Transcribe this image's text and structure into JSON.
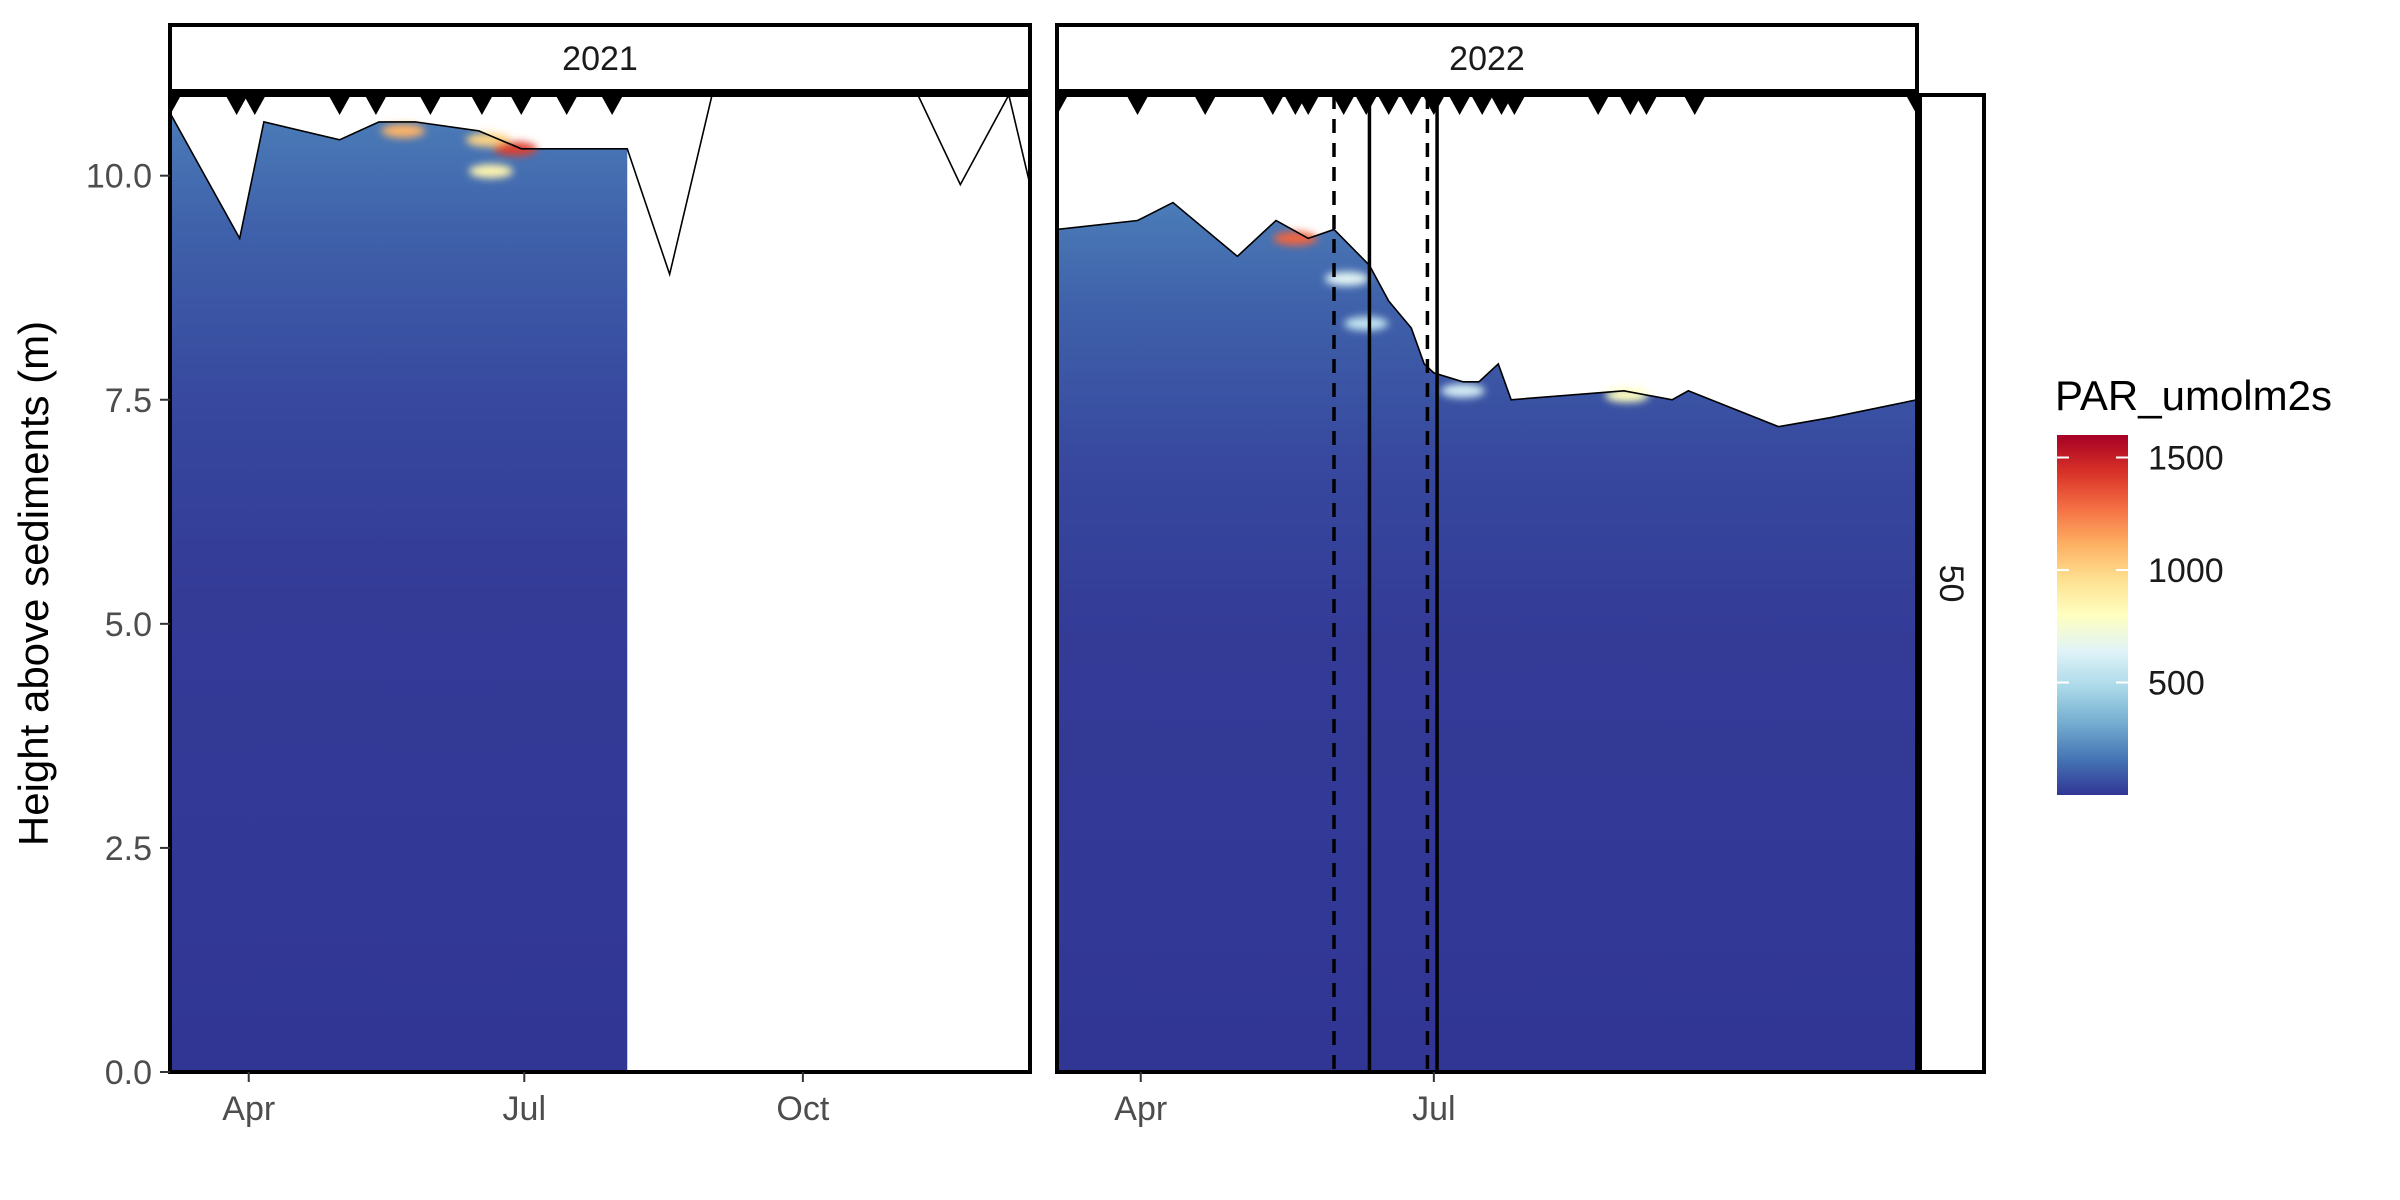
{
  "chart_data": {
    "type": "heatmap",
    "title": "",
    "xlabel": "",
    "ylabel": "Height above sediments (m)",
    "ylim": [
      0,
      10.9
    ],
    "y_ticks": [
      0.0,
      2.5,
      5.0,
      7.5,
      10.0
    ],
    "y_tick_labels": [
      "0.0",
      "2.5",
      "5.0",
      "7.5",
      "10.0"
    ],
    "fill_variable": "PAR_umolm2s",
    "legend": {
      "title": "PAR_umolm2s",
      "placement": "right",
      "range": [
        0,
        1600
      ],
      "breaks": [
        500,
        1000,
        1500
      ],
      "break_labels": [
        "500",
        "1000",
        "1500"
      ],
      "colors": [
        "#313695",
        "#4575b4",
        "#74add1",
        "#abd9e9",
        "#e0f3f8",
        "#ffffbf",
        "#fee090",
        "#fdae61",
        "#f46d43",
        "#d73027",
        "#a50026"
      ]
    },
    "row_strip_label": "50",
    "grid": false,
    "panels": [
      {
        "label": "2021",
        "xlim": [
          "2021-03-06",
          "2021-12-15"
        ],
        "x_ticks": [
          "2021-04-01",
          "2021-07-01",
          "2021-10-01"
        ],
        "x_tick_labels": [
          "Apr",
          "Jul",
          "Oct"
        ],
        "data_extent": [
          "2021-03-06",
          "2021-08-04"
        ],
        "surface_line": {
          "dates": [
            "2021-03-06",
            "2021-03-29",
            "2021-04-06",
            "2021-05-01",
            "2021-05-14",
            "2021-05-26",
            "2021-06-16",
            "2021-06-30",
            "2021-08-04",
            "2021-08-18",
            "2021-09-01",
            "2021-11-08",
            "2021-11-22",
            "2021-12-08",
            "2021-12-15"
          ],
          "heights": [
            10.7,
            9.3,
            10.6,
            10.4,
            10.6,
            10.6,
            10.5,
            10.3,
            10.3,
            8.9,
            10.9,
            10.9,
            9.9,
            10.9,
            9.9
          ]
        },
        "sampling_dates": [
          "2021-03-06",
          "2021-03-28",
          "2021-04-03",
          "2021-05-01",
          "2021-05-13",
          "2021-05-31",
          "2021-06-17",
          "2021-06-30",
          "2021-07-15",
          "2021-07-30"
        ],
        "hotspots": [
          {
            "date": "2021-05-22",
            "height": 10.5,
            "value": 1100
          },
          {
            "date": "2021-06-19",
            "height": 10.4,
            "value": 1000
          },
          {
            "date": "2021-06-28",
            "height": 10.3,
            "value": 1400
          },
          {
            "date": "2021-06-20",
            "height": 10.05,
            "value": 850
          }
        ],
        "vertical_lines": []
      },
      {
        "label": "2022",
        "xlim": [
          "2022-03-06",
          "2022-11-28"
        ],
        "x_ticks": [
          "2022-04-01",
          "2022-07-01"
        ],
        "x_tick_labels": [
          "Apr",
          "Jul"
        ],
        "data_extent": [
          "2022-03-06",
          "2022-11-28"
        ],
        "surface_line": {
          "dates": [
            "2022-03-06",
            "2022-03-31",
            "2022-04-11",
            "2022-05-01",
            "2022-05-13",
            "2022-05-23",
            "2022-05-31",
            "2022-06-11",
            "2022-06-17",
            "2022-06-24",
            "2022-06-28",
            "2022-07-01",
            "2022-07-10",
            "2022-07-15",
            "2022-07-21",
            "2022-07-25",
            "2022-08-29",
            "2022-09-13",
            "2022-09-18",
            "2022-10-16",
            "2022-11-01",
            "2022-11-28"
          ],
          "heights": [
            9.4,
            9.5,
            9.7,
            9.1,
            9.5,
            9.3,
            9.4,
            9.0,
            8.6,
            8.3,
            7.9,
            7.8,
            7.7,
            7.7,
            7.9,
            7.5,
            7.6,
            7.5,
            7.6,
            7.2,
            7.3,
            7.5
          ]
        },
        "sampling_dates": [
          "2022-03-06",
          "2022-03-31",
          "2022-04-21",
          "2022-05-12",
          "2022-05-19",
          "2022-05-23",
          "2022-06-03",
          "2022-06-10",
          "2022-06-17",
          "2022-06-24",
          "2022-07-01",
          "2022-07-09",
          "2022-07-16",
          "2022-07-22",
          "2022-07-26",
          "2022-08-21",
          "2022-08-31",
          "2022-09-05",
          "2022-09-20",
          "2022-11-28"
        ],
        "hotspots": [
          {
            "date": "2022-05-19",
            "height": 9.3,
            "value": 1300
          },
          {
            "date": "2022-06-04",
            "height": 8.85,
            "value": 650
          },
          {
            "date": "2022-06-10",
            "height": 8.35,
            "value": 550
          },
          {
            "date": "2022-07-10",
            "height": 7.6,
            "value": 600
          },
          {
            "date": "2022-08-30",
            "height": 7.55,
            "value": 800
          }
        ],
        "vertical_lines": [
          {
            "date": "2022-05-31",
            "style": "dashed"
          },
          {
            "date": "2022-06-11",
            "style": "solid"
          },
          {
            "date": "2022-06-29",
            "style": "dashed"
          },
          {
            "date": "2022-07-02",
            "style": "solid"
          }
        ]
      }
    ]
  }
}
